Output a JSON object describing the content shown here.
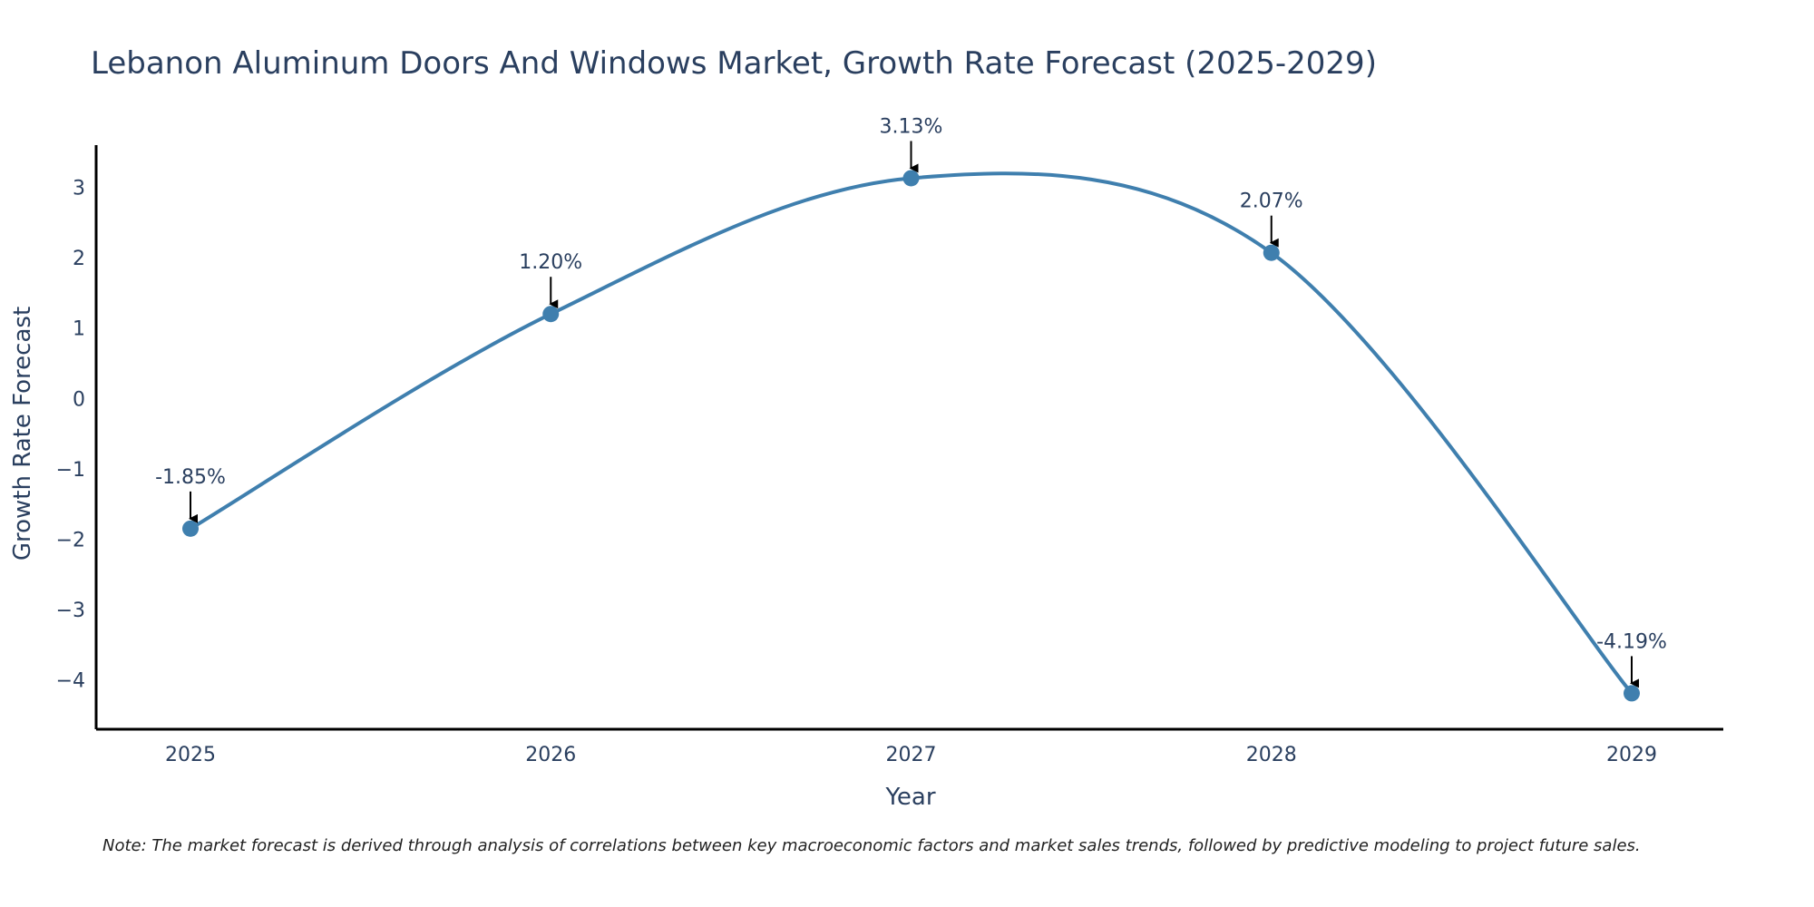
{
  "chart_data": {
    "type": "line",
    "title": "Lebanon Aluminum Doors And Windows Market, Growth Rate Forecast (2025-2029)",
    "xlabel": "Year",
    "ylabel": "Growth Rate Forecast",
    "x": [
      "2025",
      "2026",
      "2027",
      "2028",
      "2029"
    ],
    "series": [
      {
        "name": "Growth Rate Forecast",
        "values": [
          -1.85,
          1.2,
          3.13,
          2.07,
          -4.19
        ],
        "labels": [
          "-1.85%",
          "1.20%",
          "3.13%",
          "2.07%",
          "-4.19%"
        ]
      }
    ],
    "yticks": [
      3,
      2,
      1,
      0,
      -1,
      -2,
      -3,
      -4
    ],
    "ytick_labels": [
      "3",
      "2",
      "1",
      "0",
      "−1",
      "−2",
      "−3",
      "−4"
    ],
    "ylim": [
      -4.7,
      3.6
    ],
    "grid": false,
    "line_color": "#3f7fae",
    "marker_color": "#3f7fae",
    "annotation_arrow_color": "#000000"
  },
  "note": "Note: The market forecast is derived through analysis of correlations between key macroeconomic factors and market sales trends, followed by predictive modeling to project future sales."
}
